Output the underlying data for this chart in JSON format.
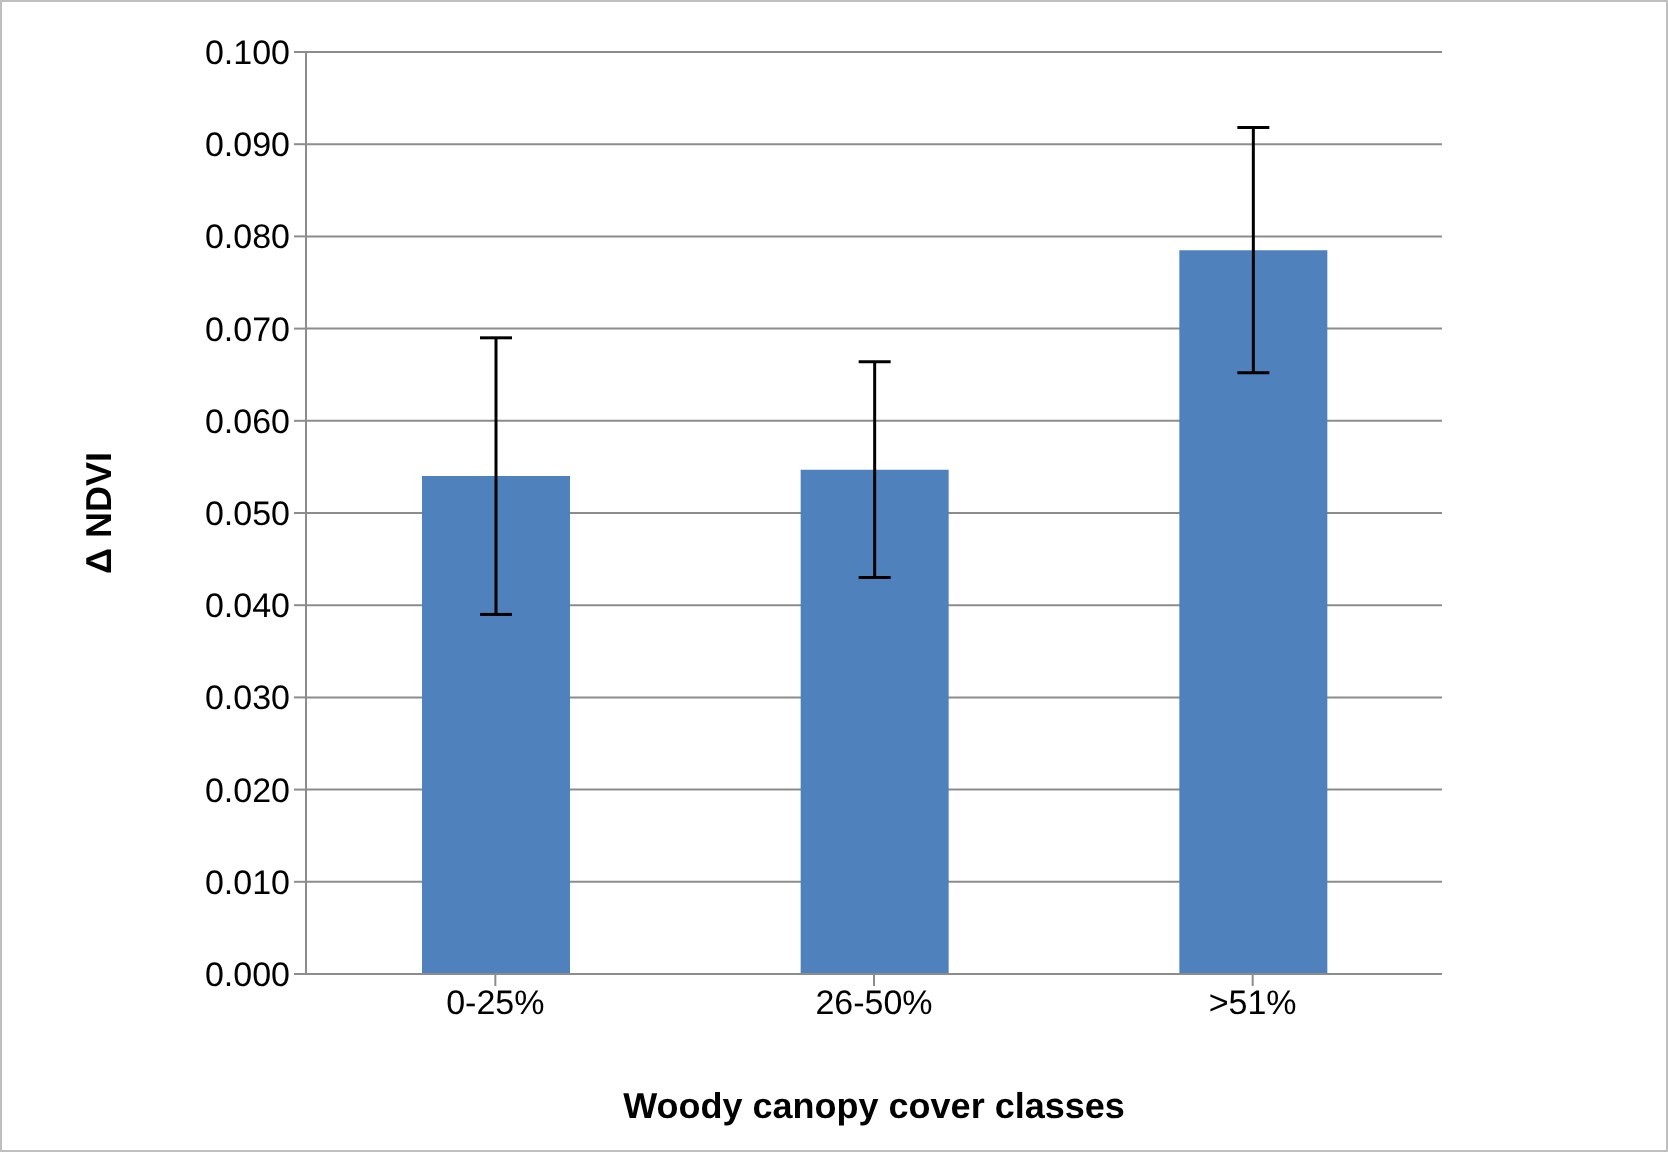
{
  "chart_data": {
    "type": "bar",
    "xlabel": "Woody canopy cover classes",
    "ylabel": "Δ NDVI",
    "categories": [
      "0-25%",
      "26-50%",
      ">51%"
    ],
    "values": [
      0.054,
      0.0547,
      0.0785
    ],
    "errors": [
      0.015,
      0.0117,
      0.0133
    ],
    "color": "#4f81bd",
    "ylim": [
      0,
      0.1
    ],
    "yticks": [
      {
        "value": 0,
        "label": "0.000"
      },
      {
        "value": 0.01,
        "label": "0.010"
      },
      {
        "value": 0.02,
        "label": "0.020"
      },
      {
        "value": 0.03,
        "label": "0.030"
      },
      {
        "value": 0.04,
        "label": "0.040"
      },
      {
        "value": 0.05,
        "label": "0.050"
      },
      {
        "value": 0.06,
        "label": "0.060"
      },
      {
        "value": 0.07,
        "label": "0.070"
      },
      {
        "value": 0.08,
        "label": "0.080"
      },
      {
        "value": 0.09,
        "label": "0.090"
      },
      {
        "value": 0.1,
        "label": "0.100"
      }
    ],
    "grid": "y",
    "legend": false
  }
}
